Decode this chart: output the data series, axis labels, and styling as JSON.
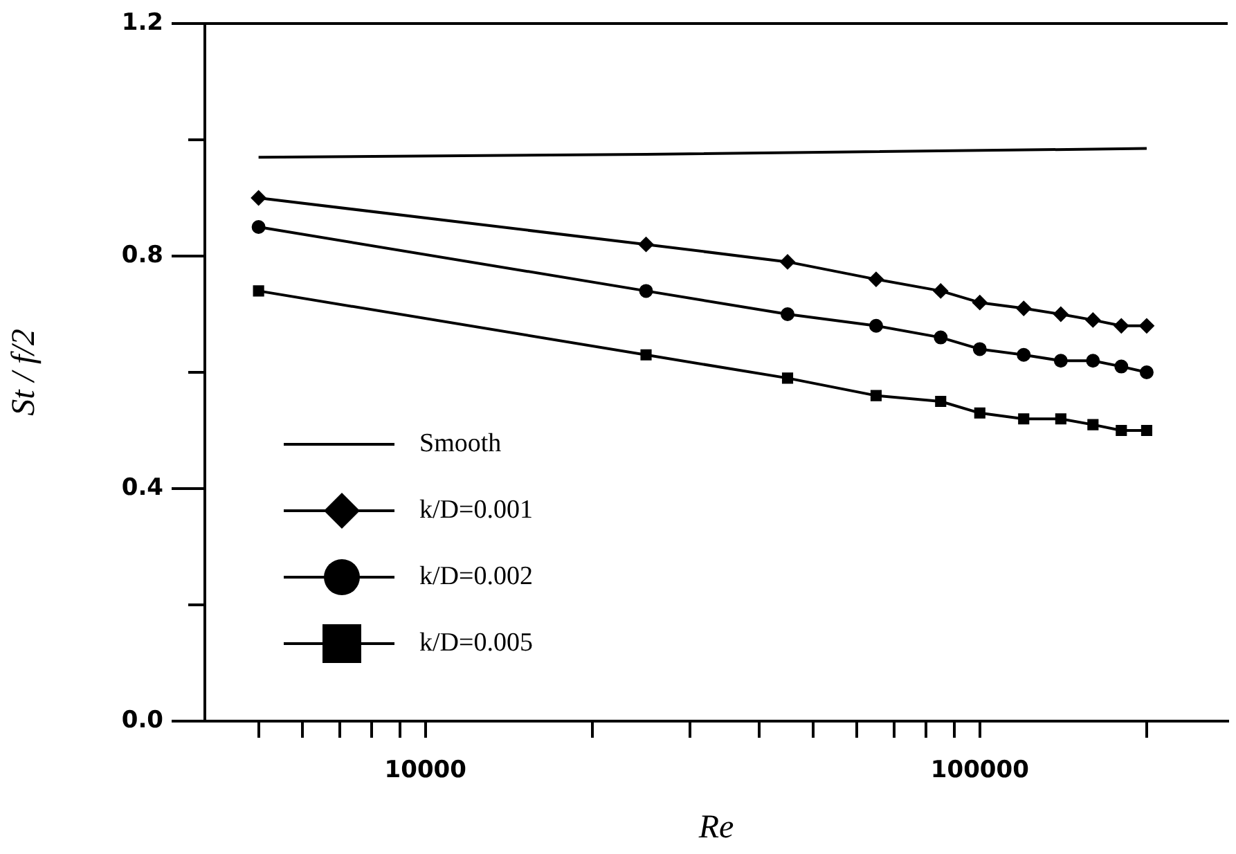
{
  "chart_data": {
    "type": "line",
    "xlabel": "Re",
    "ylabel": "St / f/2",
    "log": "x",
    "xlim": [
      4000,
      280000
    ],
    "ylim": [
      0,
      1.2
    ],
    "xticks": [
      {
        "value": 5000,
        "label": null
      },
      {
        "value": 6000,
        "label": null
      },
      {
        "value": 7000,
        "label": null
      },
      {
        "value": 8000,
        "label": null
      },
      {
        "value": 9000,
        "label": null
      },
      10000,
      {
        "value": 20000,
        "label": null
      },
      {
        "value": 30000,
        "label": null
      },
      {
        "value": 40000,
        "label": null
      },
      {
        "value": 50000,
        "label": null
      },
      {
        "value": 60000,
        "label": null
      },
      {
        "value": 70000,
        "label": null
      },
      {
        "value": 80000,
        "label": null
      },
      {
        "value": 90000,
        "label": null
      },
      100000,
      {
        "value": 200000,
        "label": null
      }
    ],
    "yticks": [
      {
        "value": 0,
        "label": "0.0"
      },
      {
        "value": 0.2,
        "label": null
      },
      0.4,
      {
        "value": 0.6,
        "label": null
      },
      0.8,
      {
        "value": 1.0,
        "label": null
      },
      1.2
    ],
    "grid": false,
    "legend": "bottom left",
    "line_style": "solid",
    "series": [
      {
        "name": "Smooth",
        "color": "#000000",
        "marker": "none",
        "x": [
          5000,
          25000,
          200000
        ],
        "values": [
          0.97,
          0.975,
          0.985
        ]
      },
      {
        "name": "k/D=0.001",
        "color": "#000000",
        "marker": "diamond",
        "x": [
          5000,
          25000,
          45000,
          65000,
          85000,
          100000,
          120000,
          140000,
          160000,
          180000,
          200000
        ],
        "values": [
          0.9,
          0.82,
          0.79,
          0.76,
          0.74,
          0.72,
          0.71,
          0.7,
          0.69,
          0.68,
          0.68
        ]
      },
      {
        "name": "k/D=0.002",
        "color": "#000000",
        "marker": "circle",
        "x": [
          5000,
          25000,
          45000,
          65000,
          85000,
          100000,
          120000,
          140000,
          160000,
          180000,
          200000
        ],
        "values": [
          0.85,
          0.74,
          0.7,
          0.68,
          0.66,
          0.64,
          0.63,
          0.62,
          0.62,
          0.61,
          0.6
        ]
      },
      {
        "name": "k/D=0.005",
        "color": "#000000",
        "marker": "square",
        "x": [
          5000,
          25000,
          45000,
          65000,
          85000,
          100000,
          120000,
          140000,
          160000,
          180000,
          200000
        ],
        "values": [
          0.74,
          0.63,
          0.59,
          0.56,
          0.55,
          0.53,
          0.52,
          0.52,
          0.51,
          0.5,
          0.5
        ]
      }
    ]
  }
}
